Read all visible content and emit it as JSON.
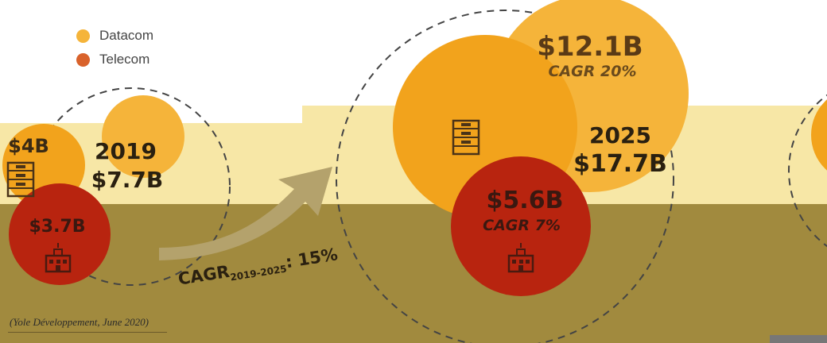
{
  "chart_data": {
    "type": "bubble",
    "legend": [
      {
        "name": "Datacom",
        "color": "#f5b43a"
      },
      {
        "name": "Telecom",
        "color": "#d9622b"
      }
    ],
    "years": [
      {
        "year": "2019",
        "total": "$7.7B",
        "datacom": "$4B",
        "telecom": "$3.7B"
      },
      {
        "year": "2025",
        "total": "$17.7B",
        "datacom": "$12.1B",
        "datacom_cagr": "CAGR 20%",
        "telecom": "$5.6B",
        "telecom_cagr": "CAGR 7%"
      }
    ],
    "growth": {
      "label": "CAGR",
      "subscript": "2019-2025",
      "value": ": 15%"
    },
    "source": "(Yole Développement, June 2020)"
  },
  "colors": {
    "datacom": "#f5b43a",
    "datacom_dark": "#f2a31c",
    "telecom": "#d9622b",
    "telecom_dark": "#b8240f",
    "band_light": "#f7e7a6",
    "band_dark": "#a18a3e",
    "text_dark": "#3a2a14",
    "arrow": "#b4a26c"
  },
  "icons": [
    "server-rack-icon",
    "telecom-building-icon"
  ]
}
